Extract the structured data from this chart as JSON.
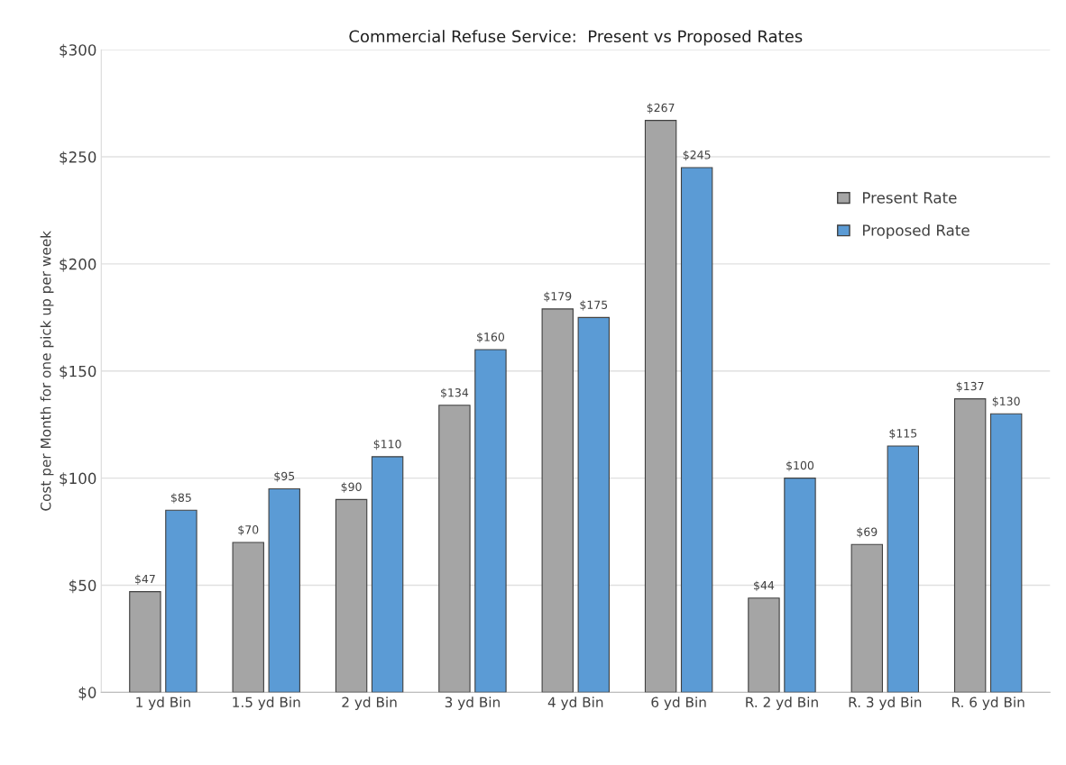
{
  "chart_data": {
    "type": "bar",
    "title": "Commercial Refuse Service:  Present vs Proposed Rates",
    "ylabel": "Cost per Month for one pick up per week",
    "categories": [
      "1 yd Bin",
      "1.5 yd Bin",
      "2 yd Bin",
      "3 yd Bin",
      "4 yd Bin",
      "6 yd Bin",
      "R. 2 yd Bin",
      "R. 3 yd Bin",
      "R. 6 yd Bin"
    ],
    "series": [
      {
        "name": "Present Rate",
        "color": "#a5a5a5",
        "values": [
          47,
          70,
          90,
          134,
          179,
          267,
          44,
          69,
          137
        ],
        "value_labels": [
          "$47",
          "$70",
          "$90",
          "$134",
          "$179",
          "$267",
          "$44",
          "$69",
          "$137"
        ]
      },
      {
        "name": "Proposed Rate",
        "color": "#5b9bd5",
        "values": [
          85,
          95,
          110,
          160,
          175,
          245,
          100,
          115,
          130
        ],
        "value_labels": [
          "$85",
          "$95",
          "$110",
          "$160",
          "$175",
          "$245",
          "$100",
          "$115",
          "$130"
        ]
      }
    ],
    "ylim": [
      0,
      300
    ],
    "yticks": [
      {
        "value": 0,
        "label": "$0"
      },
      {
        "value": 50,
        "label": "$50"
      },
      {
        "value": 100,
        "label": "$100"
      },
      {
        "value": 150,
        "label": "$150"
      },
      {
        "value": 200,
        "label": "$200"
      },
      {
        "value": 250,
        "label": "$250"
      },
      {
        "value": 300,
        "label": "$300"
      }
    ],
    "grid": "y",
    "legend": "top right"
  }
}
